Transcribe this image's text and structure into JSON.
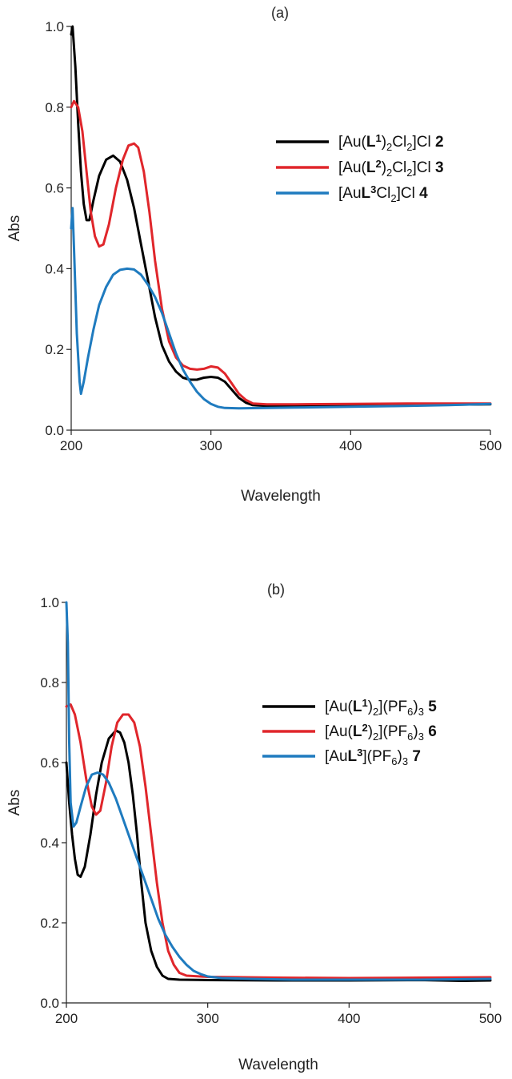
{
  "chart_data": [
    {
      "type": "line",
      "panel_label": "(a)",
      "xlabel": "Wavelength",
      "ylabel": "Abs",
      "xlim": [
        200,
        500
      ],
      "ylim": [
        0.0,
        1.0
      ],
      "x_ticks": [
        "200",
        "300",
        "400",
        "500"
      ],
      "y_ticks": [
        "0.0",
        "0.2",
        "0.4",
        "0.6",
        "0.8",
        "1.0"
      ],
      "legend_position": "right",
      "series": [
        {
          "name_parts": [
            {
              "t": "[Au(",
              "s": "n"
            },
            {
              "t": "L",
              "s": "b"
            },
            {
              "t": "1",
              "s": "bsup"
            },
            {
              "t": ")",
              "s": "n"
            },
            {
              "t": "2",
              "s": "sub"
            },
            {
              "t": "Cl",
              "s": "n"
            },
            {
              "t": "2",
              "s": "sub"
            },
            {
              "t": "]Cl ",
              "s": "n"
            },
            {
              "t": "2",
              "s": "b"
            }
          ],
          "color": "#000000",
          "points": [
            [
              200,
              0.98
            ],
            [
              201,
              1.0
            ],
            [
              203,
              0.9
            ],
            [
              205,
              0.76
            ],
            [
              207,
              0.64
            ],
            [
              209,
              0.56
            ],
            [
              211,
              0.52
            ],
            [
              213,
              0.52
            ],
            [
              216,
              0.57
            ],
            [
              220,
              0.63
            ],
            [
              225,
              0.67
            ],
            [
              230,
              0.68
            ],
            [
              235,
              0.665
            ],
            [
              240,
              0.62
            ],
            [
              245,
              0.55
            ],
            [
              250,
              0.46
            ],
            [
              255,
              0.37
            ],
            [
              260,
              0.28
            ],
            [
              265,
              0.21
            ],
            [
              270,
              0.17
            ],
            [
              275,
              0.145
            ],
            [
              280,
              0.13
            ],
            [
              285,
              0.125
            ],
            [
              290,
              0.125
            ],
            [
              295,
              0.13
            ],
            [
              300,
              0.132
            ],
            [
              305,
              0.13
            ],
            [
              310,
              0.12
            ],
            [
              315,
              0.1
            ],
            [
              320,
              0.08
            ],
            [
              325,
              0.068
            ],
            [
              330,
              0.062
            ],
            [
              340,
              0.06
            ],
            [
              360,
              0.06
            ],
            [
              400,
              0.062
            ],
            [
              440,
              0.063
            ],
            [
              470,
              0.063
            ],
            [
              500,
              0.064
            ]
          ]
        },
        {
          "name_parts": [
            {
              "t": "[Au(",
              "s": "n"
            },
            {
              "t": "L",
              "s": "b"
            },
            {
              "t": "2",
              "s": "bsup"
            },
            {
              "t": ")",
              "s": "n"
            },
            {
              "t": "2",
              "s": "sub"
            },
            {
              "t": "Cl",
              "s": "n"
            },
            {
              "t": "2",
              "s": "sub"
            },
            {
              "t": "]Cl ",
              "s": "n"
            },
            {
              "t": "3",
              "s": "b"
            }
          ],
          "color": "#e0262b",
          "points": [
            [
              200,
              0.8
            ],
            [
              202,
              0.815
            ],
            [
              205,
              0.8
            ],
            [
              208,
              0.74
            ],
            [
              211,
              0.64
            ],
            [
              214,
              0.54
            ],
            [
              217,
              0.48
            ],
            [
              220,
              0.455
            ],
            [
              223,
              0.46
            ],
            [
              227,
              0.51
            ],
            [
              232,
              0.6
            ],
            [
              237,
              0.67
            ],
            [
              241,
              0.705
            ],
            [
              245,
              0.71
            ],
            [
              248,
              0.7
            ],
            [
              252,
              0.64
            ],
            [
              256,
              0.54
            ],
            [
              260,
              0.42
            ],
            [
              265,
              0.3
            ],
            [
              270,
              0.22
            ],
            [
              275,
              0.18
            ],
            [
              280,
              0.16
            ],
            [
              285,
              0.152
            ],
            [
              290,
              0.15
            ],
            [
              295,
              0.152
            ],
            [
              300,
              0.158
            ],
            [
              305,
              0.155
            ],
            [
              310,
              0.14
            ],
            [
              315,
              0.115
            ],
            [
              320,
              0.09
            ],
            [
              325,
              0.075
            ],
            [
              330,
              0.066
            ],
            [
              340,
              0.064
            ],
            [
              360,
              0.064
            ],
            [
              400,
              0.065
            ],
            [
              450,
              0.066
            ],
            [
              500,
              0.066
            ]
          ]
        },
        {
          "name_parts": [
            {
              "t": "[Au",
              "s": "n"
            },
            {
              "t": "L",
              "s": "b"
            },
            {
              "t": "3",
              "s": "bsup"
            },
            {
              "t": "Cl",
              "s": "n"
            },
            {
              "t": "2",
              "s": "sub"
            },
            {
              "t": "]Cl ",
              "s": "n"
            },
            {
              "t": "4",
              "s": "b"
            }
          ],
          "color": "#1f7bbf",
          "points": [
            [
              200,
              0.5
            ],
            [
              201,
              0.55
            ],
            [
              202,
              0.45
            ],
            [
              204,
              0.24
            ],
            [
              206,
              0.12
            ],
            [
              207,
              0.09
            ],
            [
              209,
              0.12
            ],
            [
              212,
              0.18
            ],
            [
              216,
              0.25
            ],
            [
              220,
              0.31
            ],
            [
              225,
              0.355
            ],
            [
              230,
              0.385
            ],
            [
              235,
              0.397
            ],
            [
              240,
              0.4
            ],
            [
              245,
              0.398
            ],
            [
              250,
              0.385
            ],
            [
              255,
              0.36
            ],
            [
              260,
              0.33
            ],
            [
              265,
              0.29
            ],
            [
              270,
              0.24
            ],
            [
              275,
              0.19
            ],
            [
              280,
              0.15
            ],
            [
              285,
              0.12
            ],
            [
              290,
              0.095
            ],
            [
              295,
              0.077
            ],
            [
              300,
              0.065
            ],
            [
              305,
              0.058
            ],
            [
              310,
              0.055
            ],
            [
              320,
              0.054
            ],
            [
              340,
              0.055
            ],
            [
              360,
              0.056
            ],
            [
              400,
              0.058
            ],
            [
              440,
              0.06
            ],
            [
              470,
              0.062
            ],
            [
              500,
              0.065
            ]
          ]
        }
      ]
    },
    {
      "type": "line",
      "panel_label": "(b)",
      "xlabel": "Wavelength",
      "ylabel": "Abs",
      "xlim": [
        200,
        500
      ],
      "ylim": [
        0.0,
        1.0
      ],
      "x_ticks": [
        "200",
        "300",
        "400",
        "500"
      ],
      "y_ticks": [
        "0.0",
        "0.2",
        "0.4",
        "0.6",
        "0.8",
        "1.0"
      ],
      "legend_position": "right",
      "series": [
        {
          "name_parts": [
            {
              "t": "[Au(",
              "s": "n"
            },
            {
              "t": "L",
              "s": "b"
            },
            {
              "t": "1",
              "s": "bsup"
            },
            {
              "t": ")",
              "s": "n"
            },
            {
              "t": "2",
              "s": "sub"
            },
            {
              "t": "](PF",
              "s": "n"
            },
            {
              "t": "6",
              "s": "sub"
            },
            {
              "t": ")",
              "s": "n"
            },
            {
              "t": "3",
              "s": "sub"
            },
            {
              "t": " 5",
              "s": "b"
            }
          ],
          "color": "#000000",
          "points": [
            [
              200,
              0.6
            ],
            [
              202,
              0.5
            ],
            [
              204,
              0.42
            ],
            [
              206,
              0.36
            ],
            [
              208,
              0.32
            ],
            [
              210,
              0.315
            ],
            [
              213,
              0.34
            ],
            [
              217,
              0.42
            ],
            [
              221,
              0.52
            ],
            [
              225,
              0.6
            ],
            [
              230,
              0.66
            ],
            [
              235,
              0.68
            ],
            [
              238,
              0.675
            ],
            [
              241,
              0.65
            ],
            [
              244,
              0.6
            ],
            [
              247,
              0.52
            ],
            [
              250,
              0.42
            ],
            [
              253,
              0.3
            ],
            [
              256,
              0.2
            ],
            [
              260,
              0.13
            ],
            [
              264,
              0.09
            ],
            [
              268,
              0.068
            ],
            [
              272,
              0.06
            ],
            [
              280,
              0.058
            ],
            [
              300,
              0.057
            ],
            [
              350,
              0.056
            ],
            [
              400,
              0.056
            ],
            [
              450,
              0.057
            ],
            [
              480,
              0.055
            ],
            [
              500,
              0.056
            ]
          ]
        },
        {
          "name_parts": [
            {
              "t": "[Au(",
              "s": "n"
            },
            {
              "t": "L",
              "s": "b"
            },
            {
              "t": "2",
              "s": "bsup"
            },
            {
              "t": ")",
              "s": "n"
            },
            {
              "t": "2",
              "s": "sub"
            },
            {
              "t": "](PF",
              "s": "n"
            },
            {
              "t": "6",
              "s": "sub"
            },
            {
              "t": ")",
              "s": "n"
            },
            {
              "t": "3",
              "s": "sub"
            },
            {
              "t": " 6",
              "s": "b"
            }
          ],
          "color": "#e0262b",
          "points": [
            [
              200,
              0.74
            ],
            [
              203,
              0.745
            ],
            [
              206,
              0.72
            ],
            [
              210,
              0.65
            ],
            [
              214,
              0.56
            ],
            [
              218,
              0.49
            ],
            [
              221,
              0.47
            ],
            [
              224,
              0.48
            ],
            [
              228,
              0.55
            ],
            [
              232,
              0.64
            ],
            [
              236,
              0.7
            ],
            [
              240,
              0.72
            ],
            [
              244,
              0.72
            ],
            [
              248,
              0.7
            ],
            [
              252,
              0.64
            ],
            [
              256,
              0.54
            ],
            [
              260,
              0.42
            ],
            [
              264,
              0.3
            ],
            [
              268,
              0.2
            ],
            [
              272,
              0.13
            ],
            [
              276,
              0.095
            ],
            [
              280,
              0.075
            ],
            [
              285,
              0.068
            ],
            [
              300,
              0.065
            ],
            [
              350,
              0.063
            ],
            [
              400,
              0.062
            ],
            [
              450,
              0.063
            ],
            [
              500,
              0.064
            ]
          ]
        },
        {
          "name_parts": [
            {
              "t": "[Au",
              "s": "n"
            },
            {
              "t": "L",
              "s": "b"
            },
            {
              "t": "3",
              "s": "bsup"
            },
            {
              "t": "](PF",
              "s": "n"
            },
            {
              "t": "6",
              "s": "sub"
            },
            {
              "t": ")",
              "s": "n"
            },
            {
              "t": "3",
              "s": "sub"
            },
            {
              "t": " 7",
              "s": "b"
            }
          ],
          "color": "#1f7bbf",
          "points": [
            [
              200,
              1.0
            ],
            [
              201,
              0.9
            ],
            [
              202,
              0.65
            ],
            [
              203,
              0.5
            ],
            [
              205,
              0.44
            ],
            [
              207,
              0.45
            ],
            [
              210,
              0.49
            ],
            [
              214,
              0.54
            ],
            [
              218,
              0.57
            ],
            [
              222,
              0.575
            ],
            [
              226,
              0.57
            ],
            [
              230,
              0.55
            ],
            [
              235,
              0.51
            ],
            [
              240,
              0.46
            ],
            [
              245,
              0.41
            ],
            [
              250,
              0.36
            ],
            [
              255,
              0.31
            ],
            [
              260,
              0.26
            ],
            [
              265,
              0.21
            ],
            [
              270,
              0.17
            ],
            [
              275,
              0.14
            ],
            [
              280,
              0.115
            ],
            [
              285,
              0.095
            ],
            [
              290,
              0.08
            ],
            [
              295,
              0.072
            ],
            [
              300,
              0.066
            ],
            [
              310,
              0.062
            ],
            [
              330,
              0.06
            ],
            [
              360,
              0.058
            ],
            [
              400,
              0.058
            ],
            [
              450,
              0.058
            ],
            [
              500,
              0.06
            ]
          ]
        }
      ]
    }
  ]
}
